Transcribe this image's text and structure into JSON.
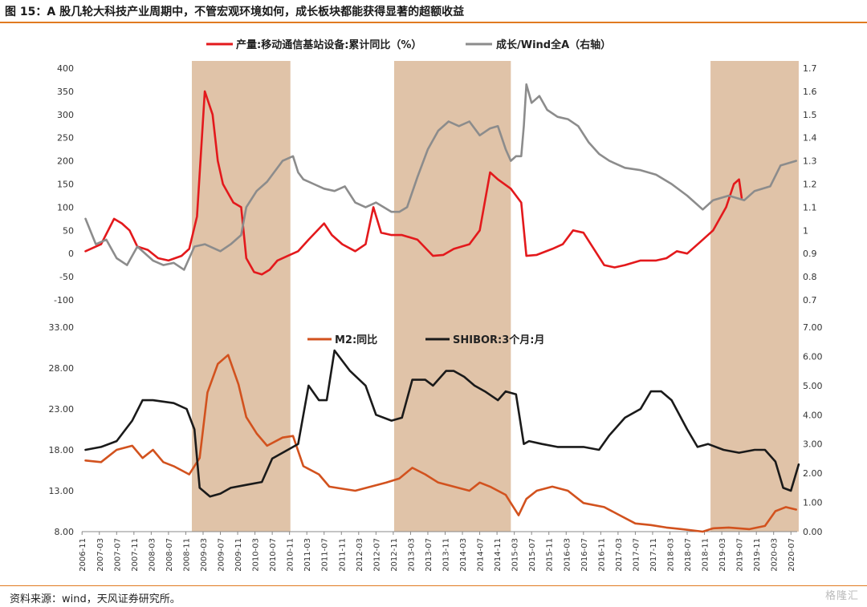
{
  "header": {
    "title": "图 15：A 股几轮大科技产业周期中，不管宏观环境如何，成长板块都能获得显著的超额收益"
  },
  "footer": {
    "source": "资料来源：wind，天风证券研究所。",
    "logo": "格隆汇"
  },
  "colors": {
    "red": "#e3191c",
    "gray": "#8c8c8c",
    "orange": "#d2521e",
    "black": "#1a1a1a",
    "shade": "#e0c3a8"
  },
  "chart_data": [
    {
      "type": "line",
      "panel": "top",
      "ylim_left": [
        -100,
        400
      ],
      "ylim_right": [
        0.7,
        1.7
      ],
      "yticks_left": [
        "400",
        "350",
        "300",
        "250",
        "200",
        "150",
        "100",
        "50",
        "0",
        "-50",
        "-100"
      ],
      "yticks_right": [
        "1.7",
        "1.6",
        "1.5",
        "1.4",
        "1.3",
        "1.2",
        "1.1",
        "1",
        "0.9",
        "0.8",
        "0.7"
      ],
      "series": [
        {
          "name": "产量:移动通信基站设备:累计同比（%）",
          "axis": "left",
          "color": "#e3191c",
          "x": [
            2006.9,
            2007.2,
            2007.45,
            2007.6,
            2007.75,
            2007.9,
            2008.1,
            2008.3,
            2008.5,
            2008.75,
            2008.9,
            2009.05,
            2009.2,
            2009.35,
            2009.45,
            2009.55,
            2009.65,
            2009.75,
            2009.9,
            2010.0,
            2010.15,
            2010.3,
            2010.45,
            2010.6,
            2010.8,
            2011.0,
            2011.2,
            2011.5,
            2011.65,
            2011.85,
            2012.1,
            2012.3,
            2012.45,
            2012.6,
            2012.8,
            2013.0,
            2013.3,
            2013.6,
            2013.8,
            2014.0,
            2014.3,
            2014.5,
            2014.7,
            2014.85,
            2015.1,
            2015.3,
            2015.4,
            2015.6,
            2015.9,
            2016.1,
            2016.3,
            2016.5,
            2016.9,
            2017.1,
            2017.3,
            2017.6,
            2017.9,
            2018.1,
            2018.3,
            2018.5,
            2018.75,
            2019.0,
            2019.25,
            2019.4,
            2019.5,
            2019.55
          ],
          "values": [
            5,
            20,
            75,
            65,
            50,
            15,
            8,
            -10,
            -15,
            -5,
            10,
            80,
            350,
            300,
            200,
            150,
            130,
            110,
            100,
            -10,
            -40,
            -45,
            -35,
            -15,
            -5,
            5,
            30,
            65,
            40,
            20,
            5,
            20,
            100,
            45,
            40,
            40,
            30,
            -5,
            -3,
            10,
            20,
            50,
            175,
            160,
            140,
            110,
            -5,
            -3,
            10,
            20,
            50,
            45,
            -25,
            -30,
            -25,
            -15,
            -15,
            -10,
            5,
            0,
            25,
            50,
            100,
            150,
            160,
            120
          ]
        },
        {
          "name": "成长/Wind全A（右轴）",
          "axis": "right",
          "color": "#8c8c8c",
          "x": [
            2006.9,
            2007.1,
            2007.3,
            2007.5,
            2007.7,
            2007.9,
            2008.2,
            2008.4,
            2008.6,
            2008.8,
            2009.0,
            2009.2,
            2009.5,
            2009.7,
            2009.9,
            2010.0,
            2010.2,
            2010.4,
            2010.7,
            2010.9,
            2011.0,
            2011.1,
            2011.3,
            2011.5,
            2011.7,
            2011.9,
            2012.1,
            2012.3,
            2012.5,
            2012.8,
            2012.95,
            2013.1,
            2013.3,
            2013.5,
            2013.7,
            2013.9,
            2014.1,
            2014.3,
            2014.5,
            2014.7,
            2014.85,
            2015.0,
            2015.1,
            2015.2,
            2015.3,
            2015.35,
            2015.4,
            2015.5,
            2015.65,
            2015.8,
            2016.0,
            2016.2,
            2016.4,
            2016.6,
            2016.8,
            2017.0,
            2017.3,
            2017.6,
            2017.9,
            2018.2,
            2018.5,
            2018.8,
            2019.0,
            2019.3,
            2019.6,
            2019.8,
            2020.1,
            2020.3,
            2020.6
          ],
          "values": [
            1.05,
            0.94,
            0.96,
            0.88,
            0.85,
            0.93,
            0.87,
            0.85,
            0.86,
            0.83,
            0.93,
            0.94,
            0.91,
            0.94,
            0.98,
            1.1,
            1.17,
            1.21,
            1.3,
            1.32,
            1.25,
            1.22,
            1.2,
            1.18,
            1.17,
            1.19,
            1.12,
            1.1,
            1.12,
            1.08,
            1.08,
            1.1,
            1.23,
            1.35,
            1.43,
            1.47,
            1.45,
            1.47,
            1.41,
            1.44,
            1.45,
            1.35,
            1.3,
            1.32,
            1.32,
            1.45,
            1.63,
            1.55,
            1.58,
            1.52,
            1.49,
            1.48,
            1.45,
            1.38,
            1.33,
            1.3,
            1.27,
            1.26,
            1.24,
            1.2,
            1.15,
            1.09,
            1.13,
            1.15,
            1.13,
            1.17,
            1.19,
            1.28,
            1.3
          ]
        }
      ],
      "shaded_periods": [
        [
          2008.95,
          2010.85
        ],
        [
          2012.85,
          2015.1
        ],
        [
          2018.95,
          2020.65
        ]
      ],
      "legend": "top-center"
    },
    {
      "type": "line",
      "panel": "bottom",
      "ylim_left": [
        8,
        33
      ],
      "ylim_right": [
        0,
        7
      ],
      "yticks_left": [
        "33.00",
        "28.00",
        "23.00",
        "18.00",
        "13.00",
        "8.00"
      ],
      "yticks_right": [
        "7.00",
        "6.00",
        "5.00",
        "4.00",
        "3.00",
        "2.00",
        "1.00",
        "0.00"
      ],
      "xticks": [
        "2006-11",
        "2007-03",
        "2007-07",
        "2007-11",
        "2008-03",
        "2008-07",
        "2008-11",
        "2009-03",
        "2009-07",
        "2009-11",
        "2010-03",
        "2010-07",
        "2010-11",
        "2011-03",
        "2011-07",
        "2011-11",
        "2012-03",
        "2012-07",
        "2012-11",
        "2013-03",
        "2013-07",
        "2013-11",
        "2014-03",
        "2014-07",
        "2014-11",
        "2015-03",
        "2015-07",
        "2015-11",
        "2016-03",
        "2016-07",
        "2016-11",
        "2017-03",
        "2017-07",
        "2017-11",
        "2018-03",
        "2018-07",
        "2018-11",
        "2019-03",
        "2019-07",
        "2019-11",
        "2020-03",
        "2020-07"
      ],
      "series": [
        {
          "name": "M2:同比",
          "axis": "left",
          "color": "#d2521e",
          "x": [
            2006.9,
            2007.2,
            2007.5,
            2007.8,
            2008.0,
            2008.2,
            2008.4,
            2008.6,
            2008.9,
            2009.1,
            2009.25,
            2009.45,
            2009.65,
            2009.85,
            2010.0,
            2010.2,
            2010.4,
            2010.7,
            2010.9,
            2011.1,
            2011.4,
            2011.6,
            2011.9,
            2012.1,
            2012.4,
            2012.7,
            2012.95,
            2013.2,
            2013.45,
            2013.7,
            2014.0,
            2014.3,
            2014.5,
            2014.7,
            2015.0,
            2015.25,
            2015.4,
            2015.6,
            2015.9,
            2016.2,
            2016.5,
            2016.9,
            2017.2,
            2017.5,
            2017.8,
            2018.1,
            2018.4,
            2018.8,
            2019.0,
            2019.3,
            2019.7,
            2020.0,
            2020.2,
            2020.4,
            2020.6
          ],
          "values": [
            16.7,
            16.5,
            18,
            18.5,
            17,
            18,
            16.5,
            16,
            15,
            17,
            25,
            28.5,
            29.6,
            26,
            22,
            20,
            18.5,
            19.5,
            19.7,
            16,
            15,
            13.5,
            13.2,
            13,
            13.5,
            14,
            14.5,
            15.8,
            15,
            14,
            13.5,
            13,
            14,
            13.5,
            12.5,
            10,
            12,
            13,
            13.5,
            13,
            11.5,
            11,
            10,
            9,
            8.8,
            8.5,
            8.3,
            8.0,
            8.4,
            8.5,
            8.3,
            8.7,
            10.5,
            11,
            10.7
          ]
        },
        {
          "name": "SHIBOR:3个月:月",
          "axis": "right",
          "color": "#1a1a1a",
          "x": [
            2006.9,
            2007.2,
            2007.5,
            2007.8,
            2008.0,
            2008.2,
            2008.6,
            2008.85,
            2009.0,
            2009.1,
            2009.3,
            2009.5,
            2009.7,
            2010.0,
            2010.3,
            2010.5,
            2010.8,
            2011.0,
            2011.2,
            2011.4,
            2011.55,
            2011.7,
            2012.0,
            2012.3,
            2012.5,
            2012.8,
            2013.0,
            2013.2,
            2013.45,
            2013.6,
            2013.85,
            2014.0,
            2014.2,
            2014.4,
            2014.6,
            2014.85,
            2015.0,
            2015.2,
            2015.35,
            2015.45,
            2015.7,
            2016.0,
            2016.5,
            2016.8,
            2017.0,
            2017.3,
            2017.6,
            2017.8,
            2018.0,
            2018.2,
            2018.5,
            2018.7,
            2018.9,
            2019.2,
            2019.5,
            2019.8,
            2020.0,
            2020.2,
            2020.35,
            2020.5,
            2020.65
          ],
          "values": [
            2.8,
            2.9,
            3.1,
            3.8,
            4.5,
            4.5,
            4.4,
            4.2,
            3.5,
            1.5,
            1.2,
            1.3,
            1.5,
            1.6,
            1.7,
            2.5,
            2.8,
            3,
            5,
            4.5,
            4.5,
            6.2,
            5.5,
            5,
            4,
            3.8,
            3.9,
            5.2,
            5.2,
            5,
            5.5,
            5.5,
            5.3,
            5.0,
            4.8,
            4.5,
            4.8,
            4.7,
            3.0,
            3.1,
            3.0,
            2.9,
            2.9,
            2.8,
            3.3,
            3.9,
            4.2,
            4.8,
            4.8,
            4.5,
            3.5,
            2.9,
            3.0,
            2.8,
            2.7,
            2.8,
            2.8,
            2.4,
            1.5,
            1.4,
            2.3
          ]
        }
      ],
      "shaded_periods": [
        [
          2008.95,
          2010.85
        ],
        [
          2012.85,
          2015.1
        ],
        [
          2018.95,
          2020.65
        ]
      ],
      "legend": "top-center"
    }
  ]
}
